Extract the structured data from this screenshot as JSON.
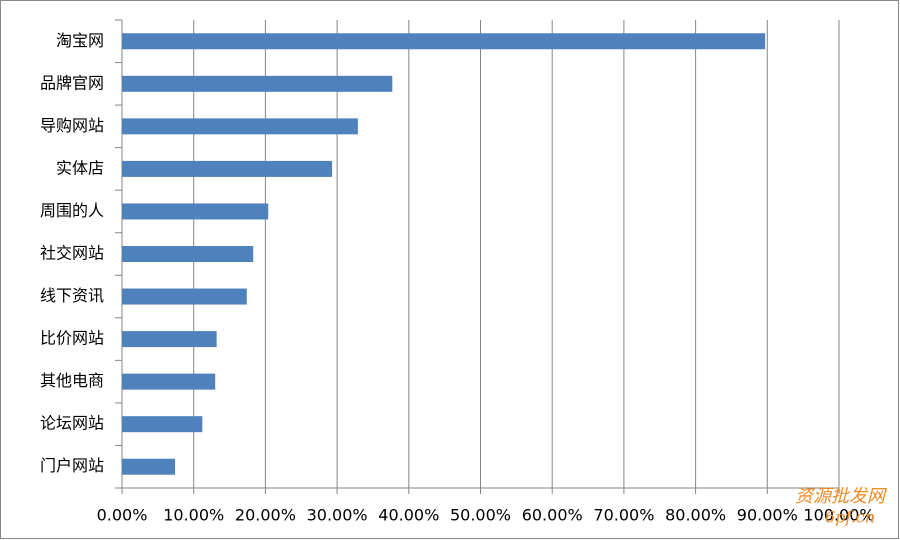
{
  "chart_data": {
    "type": "bar",
    "orientation": "horizontal",
    "categories": [
      "淘宝网",
      "品牌官网",
      "导购网站",
      "实体店",
      "周围的人",
      "社交网站",
      "线下资讯",
      "比价网站",
      "其他电商",
      "论坛网站",
      "门户网站"
    ],
    "values": [
      89.7,
      37.7,
      32.9,
      29.3,
      20.4,
      18.3,
      17.4,
      13.2,
      13.0,
      11.2,
      7.4
    ],
    "color": "#4f81bd",
    "xlim": [
      0,
      100
    ],
    "xticks": [
      {
        "value": 0,
        "label": "0.00%"
      },
      {
        "value": 10,
        "label": "10.00%"
      },
      {
        "value": 20,
        "label": "20.00%"
      },
      {
        "value": 30,
        "label": "30.00%"
      },
      {
        "value": 40,
        "label": "40.00%"
      },
      {
        "value": 50,
        "label": "50.00%"
      },
      {
        "value": 60,
        "label": "60.00%"
      },
      {
        "value": 70,
        "label": "70.00%"
      },
      {
        "value": 80,
        "label": "80.00%"
      },
      {
        "value": 90,
        "label": "90.00%"
      },
      {
        "value": 100,
        "label": "100.00%"
      }
    ],
    "grid": true,
    "watermark": [
      "资源批发网",
      "6pf.cn"
    ]
  }
}
